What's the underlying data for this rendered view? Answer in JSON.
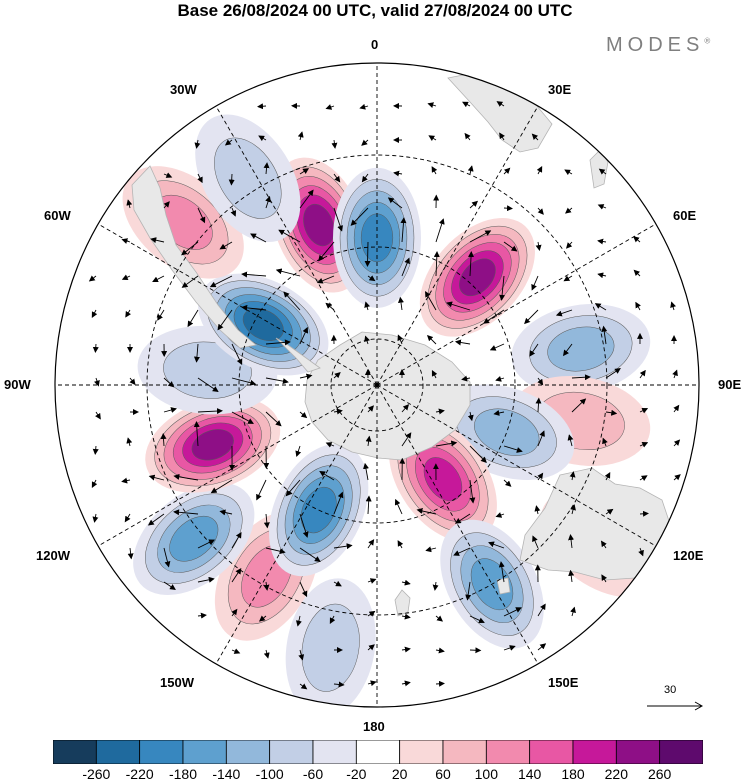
{
  "header": {
    "title": "Base 26/08/2024 00 UTC, valid 27/08/2024 00 UTC",
    "brand": "MODES",
    "brand_mark": "®"
  },
  "map": {
    "projection": "south-polar-stereographic",
    "longitude_labels": [
      "0",
      "30E",
      "60E",
      "90E",
      "120E",
      "150E",
      "180",
      "150W",
      "120W",
      "90W",
      "60W",
      "30W"
    ],
    "graticule": "dashed"
  },
  "reference_vector": {
    "value": "30"
  },
  "colorbar": {
    "ticks": [
      "-260",
      "-220",
      "-180",
      "-140",
      "-100",
      "-60",
      "-20",
      "20",
      "60",
      "100",
      "140",
      "180",
      "220",
      "260"
    ],
    "colors": [
      "#163c5c",
      "#1f6a9e",
      "#3787bf",
      "#5ea0cf",
      "#92b8db",
      "#c2cfe6",
      "#e3e4f1",
      "#ffffff",
      "#f9d9d9",
      "#f5b8c0",
      "#f28aae",
      "#e857a4",
      "#c6189a",
      "#8e0f86",
      "#5e0a6d"
    ]
  },
  "anomaly_centers": [
    {
      "lon": -20,
      "lat": -53,
      "value": 240
    },
    {
      "lon": 0,
      "lat": -58,
      "value": -200
    },
    {
      "lon": 43,
      "lat": -58,
      "value": 230
    },
    {
      "lon": 80,
      "lat": -45,
      "value": -130
    },
    {
      "lon": 100,
      "lat": -45,
      "value": 80
    },
    {
      "lon": 110,
      "lat": -60,
      "value": -110
    },
    {
      "lon": 145,
      "lat": -65,
      "value": 180
    },
    {
      "lon": 150,
      "lat": -40,
      "value": -150
    },
    {
      "lon": 125,
      "lat": -30,
      "value": 50
    },
    {
      "lon": -150,
      "lat": -42,
      "value": 110
    },
    {
      "lon": -155,
      "lat": -60,
      "value": -180
    },
    {
      "lon": -130,
      "lat": -38,
      "value": -170
    },
    {
      "lon": -110,
      "lat": -52,
      "value": 240
    },
    {
      "lon": -85,
      "lat": -53,
      "value": -70
    },
    {
      "lon": -62,
      "lat": -62,
      "value": -230
    },
    {
      "lon": -50,
      "lat": -35,
      "value": 100
    },
    {
      "lon": -32,
      "lat": -37,
      "value": -70
    },
    {
      "lon": -170,
      "lat": -32,
      "value": -60
    }
  ]
}
